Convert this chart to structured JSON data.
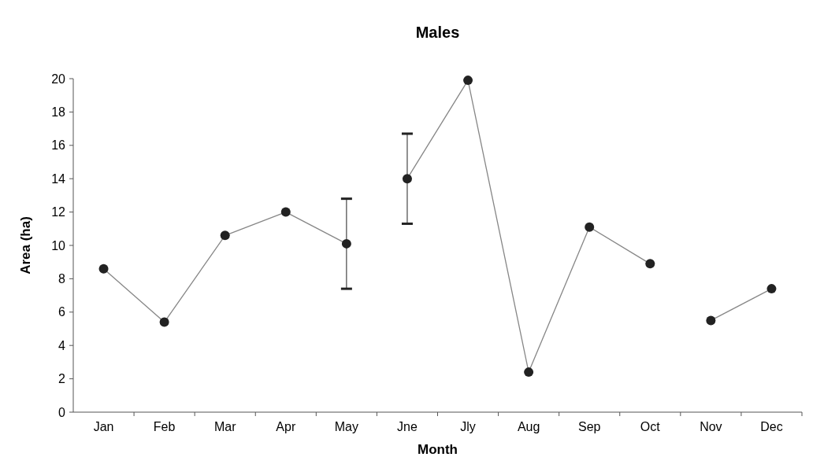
{
  "chart_data": {
    "type": "line",
    "title": "Males",
    "xlabel": "Month",
    "ylabel": "Area (ha)",
    "categories": [
      "Jan",
      "Feb",
      "Mar",
      "Apr",
      "May",
      "Jne",
      "Jly",
      "Aug",
      "Sep",
      "Oct",
      "Nov",
      "Dec"
    ],
    "series": [
      {
        "color": "#222222",
        "values": [
          8.6,
          5.4,
          10.6,
          12.0,
          10.1,
          null,
          null,
          null,
          null,
          null,
          null,
          null
        ],
        "errors": [
          null,
          null,
          null,
          null,
          2.7,
          null,
          null,
          null,
          null,
          null,
          null,
          null
        ]
      },
      {
        "color": "#222222",
        "values": [
          null,
          null,
          null,
          null,
          null,
          14.0,
          19.9,
          2.4,
          11.1,
          8.9,
          null,
          null
        ],
        "errors": [
          null,
          null,
          null,
          null,
          null,
          2.7,
          null,
          null,
          null,
          null,
          null,
          null
        ]
      },
      {
        "color": "#222222",
        "values": [
          null,
          null,
          null,
          null,
          null,
          null,
          null,
          null,
          null,
          null,
          5.5,
          7.4
        ]
      }
    ],
    "ylim": [
      0,
      20
    ],
    "yticks": [
      0,
      2,
      4,
      6,
      8,
      10,
      12,
      14,
      16,
      18,
      20
    ],
    "grid": false,
    "marker": "circle",
    "line_style": "solid"
  }
}
